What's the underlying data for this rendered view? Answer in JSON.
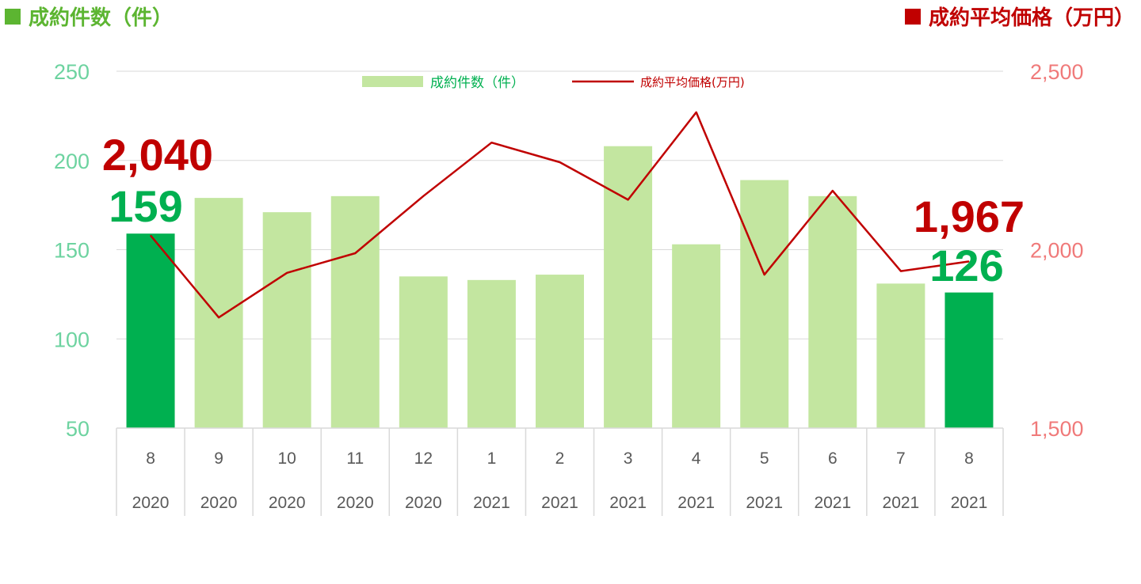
{
  "header": {
    "left_title": "成約件数（件）",
    "right_title": "成約平均価格（万円）"
  },
  "legend": {
    "bar_label": "成約件数（件）",
    "line_label": "成約平均価格(万円)"
  },
  "colors": {
    "bar_highlight": "#00b050",
    "bar_normal": "#c3e6a0",
    "line": "#c00000",
    "left_axis": "#6dd3a0",
    "right_axis": "#f07a7a",
    "grid": "#d9d9d9"
  },
  "chart_data": {
    "type": "bar",
    "categories": [
      {
        "month": "8",
        "year": "2020"
      },
      {
        "month": "9",
        "year": "2020"
      },
      {
        "month": "10",
        "year": "2020"
      },
      {
        "month": "11",
        "year": "2020"
      },
      {
        "month": "12",
        "year": "2020"
      },
      {
        "month": "1",
        "year": "2021"
      },
      {
        "month": "2",
        "year": "2021"
      },
      {
        "month": "3",
        "year": "2021"
      },
      {
        "month": "4",
        "year": "2021"
      },
      {
        "month": "5",
        "year": "2021"
      },
      {
        "month": "6",
        "year": "2021"
      },
      {
        "month": "7",
        "year": "2021"
      },
      {
        "month": "8",
        "year": "2021"
      }
    ],
    "series": [
      {
        "name": "成約件数（件）",
        "type": "bar",
        "axis": "left",
        "values": [
          159,
          179,
          171,
          180,
          135,
          133,
          136,
          208,
          153,
          189,
          180,
          131,
          126
        ],
        "highlight": [
          true,
          false,
          false,
          false,
          false,
          false,
          false,
          false,
          false,
          false,
          false,
          false,
          true
        ]
      },
      {
        "name": "成約平均価格(万円)",
        "type": "line",
        "axis": "right",
        "values": [
          2040,
          1810,
          1935,
          1990,
          2150,
          2300,
          2245,
          2140,
          2385,
          1930,
          2165,
          1940,
          1967
        ]
      }
    ],
    "left_axis": {
      "ylim": [
        50,
        250
      ],
      "ticks": [
        "50",
        "100",
        "150",
        "200",
        "250"
      ]
    },
    "right_axis": {
      "ylim": [
        1500,
        2500
      ],
      "ticks": [
        "1,500",
        "2,000",
        "2,500"
      ]
    },
    "annotations": {
      "first_price": "2,040",
      "first_count": "159",
      "last_price": "1,967",
      "last_count": "126"
    },
    "grid": true,
    "legend_position": "top-center"
  }
}
